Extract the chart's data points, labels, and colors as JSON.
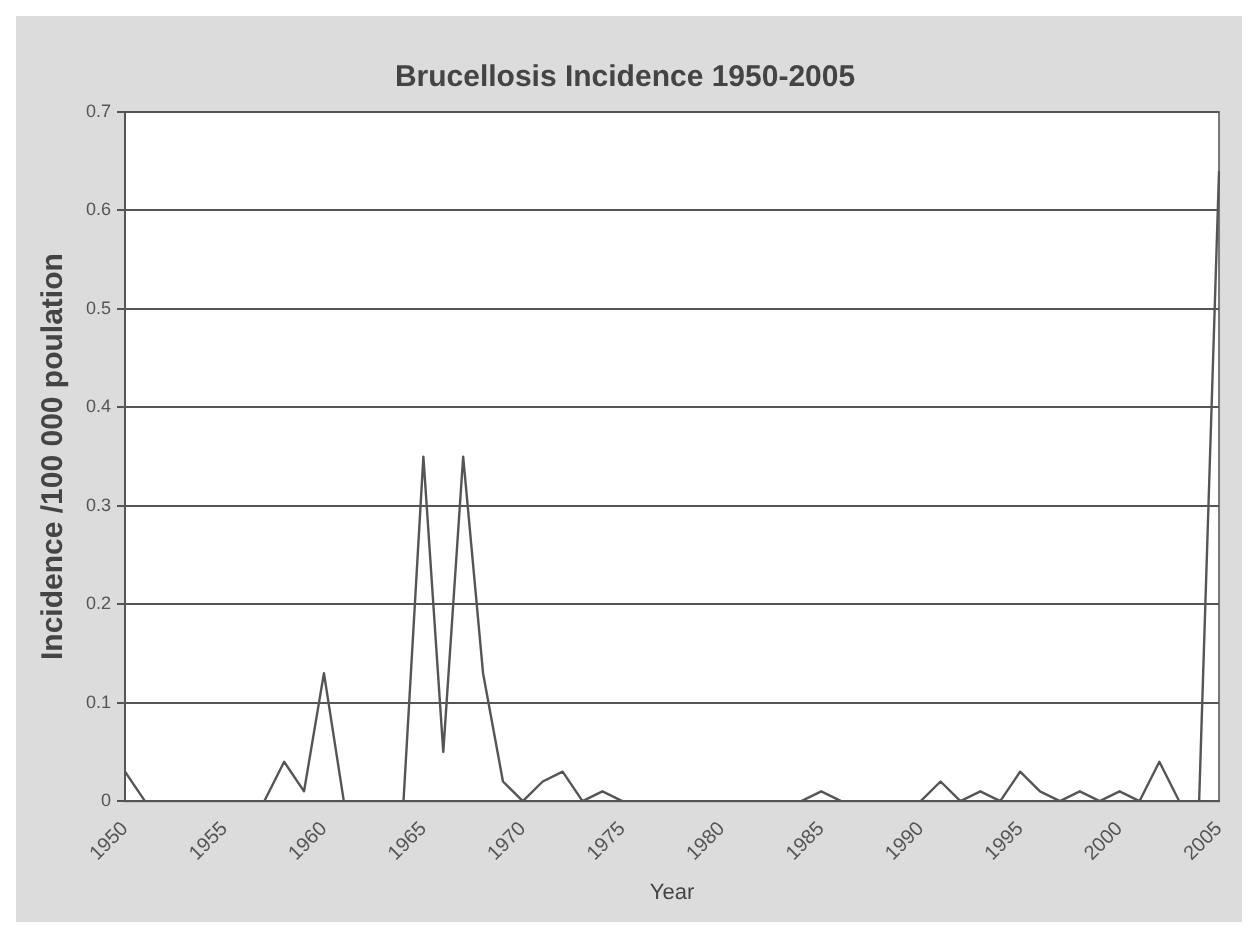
{
  "chart_data": {
    "type": "line",
    "title": "Brucellosis Incidence 1950-2005",
    "xlabel": "Year",
    "ylabel": "Incidence /100 000 poulation",
    "categories": [
      "1950",
      null,
      null,
      null,
      null,
      "1955",
      null,
      null,
      null,
      null,
      "1960",
      null,
      null,
      null,
      null,
      "1965",
      null,
      null,
      null,
      null,
      "1970",
      null,
      null,
      null,
      null,
      "1975",
      null,
      null,
      null,
      null,
      "1980",
      null,
      null,
      null,
      null,
      "1985",
      null,
      null,
      null,
      null,
      "1990",
      null,
      null,
      null,
      null,
      "1995",
      null,
      null,
      null,
      null,
      "2000",
      null,
      null,
      null,
      null,
      "2005"
    ],
    "series": [
      {
        "color": "#555555",
        "values": [
          0.03,
          0,
          0,
          0,
          0,
          0,
          0,
          0,
          0.04,
          0.01,
          0.13,
          0,
          0,
          0,
          0,
          0.35,
          0.05,
          0.35,
          0.13,
          0.02,
          0,
          0.02,
          0.03,
          0,
          0.01,
          0,
          0,
          0,
          0,
          0,
          0,
          0,
          0,
          0,
          0,
          0.01,
          0,
          0,
          0,
          0,
          0,
          0.02,
          0,
          0.01,
          0,
          0.03,
          0.01,
          0,
          0.01,
          0,
          0.01,
          0,
          0.04,
          0,
          0,
          0.64
        ]
      }
    ],
    "ylim": [
      0,
      0.7
    ],
    "yticks": [
      0,
      0.1,
      0.2,
      0.3,
      0.4,
      0.5,
      0.6,
      0.7
    ],
    "grid": "y",
    "legend": false,
    "marker": "none",
    "line_style": "solid"
  }
}
